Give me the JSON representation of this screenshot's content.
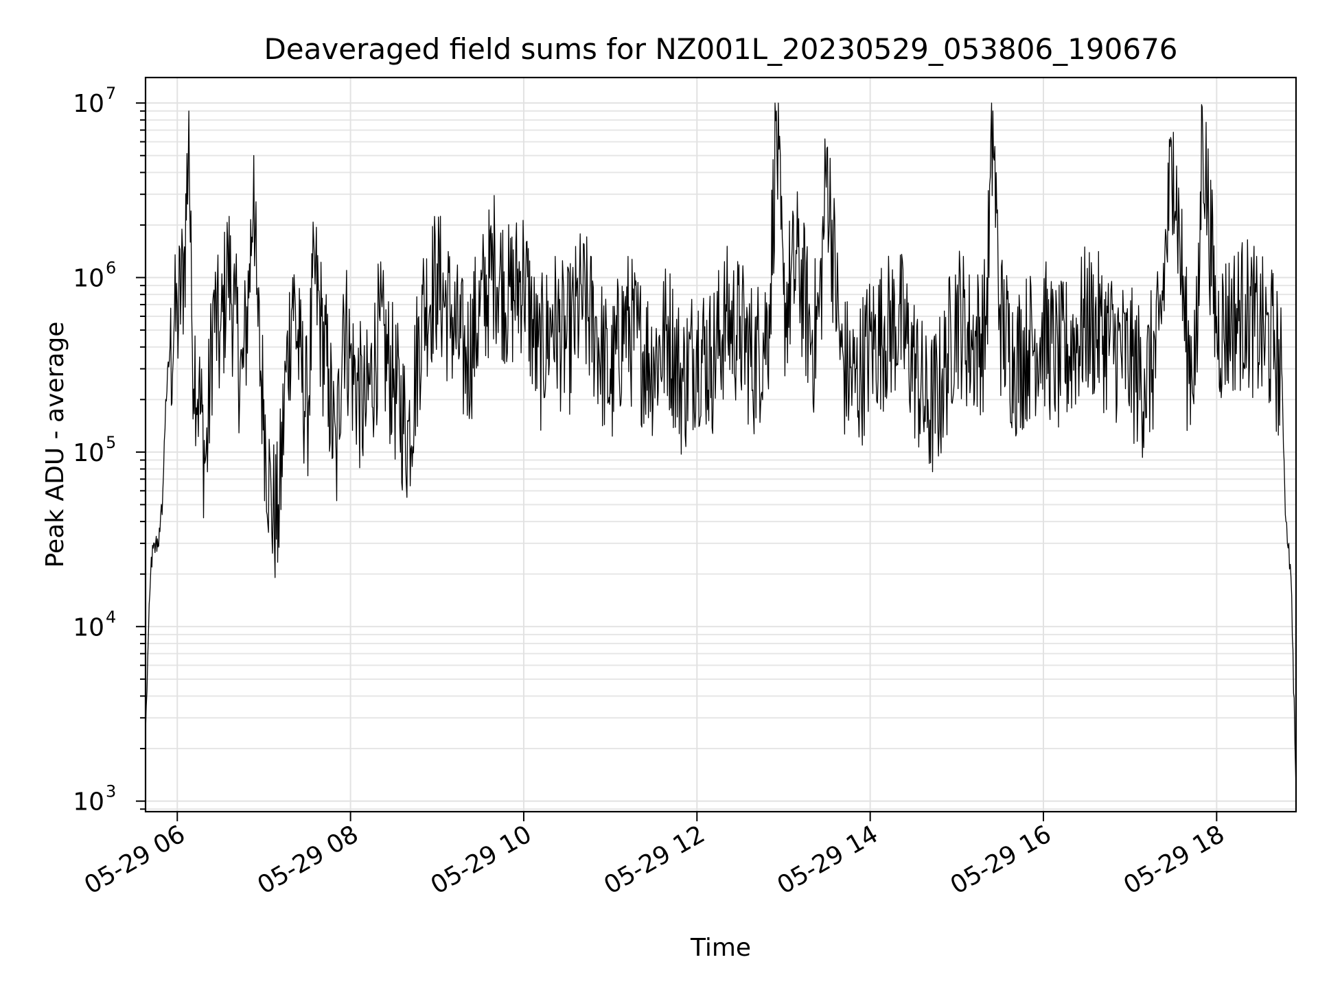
{
  "chart_data": {
    "type": "line",
    "title": "Deaveraged field sums for NZ001L_20230529_053806_190676",
    "xlabel": "Time",
    "ylabel": "Peak ADU - average",
    "yscale": "log",
    "ylim": [
      870,
      14000000
    ],
    "xlim": [
      "2023-05-29 05:38",
      "2023-05-29 18:55"
    ],
    "grid": true,
    "x_ticks": [
      {
        "value": "2023-05-29 06:00",
        "label": "05-29 06"
      },
      {
        "value": "2023-05-29 08:00",
        "label": "05-29 08"
      },
      {
        "value": "2023-05-29 10:00",
        "label": "05-29 10"
      },
      {
        "value": "2023-05-29 12:00",
        "label": "05-29 12"
      },
      {
        "value": "2023-05-29 14:00",
        "label": "05-29 14"
      },
      {
        "value": "2023-05-29 16:00",
        "label": "05-29 16"
      },
      {
        "value": "2023-05-29 18:00",
        "label": "05-29 18"
      }
    ],
    "y_ticks": [
      {
        "value": 1000,
        "base": "10",
        "exp": "3"
      },
      {
        "value": 10000,
        "base": "10",
        "exp": "4"
      },
      {
        "value": 100000,
        "base": "10",
        "exp": "5"
      },
      {
        "value": 1000000,
        "base": "10",
        "exp": "6"
      },
      {
        "value": 10000000,
        "base": "10",
        "exp": "7"
      }
    ],
    "series": [
      {
        "color": "#000000",
        "x": [
          "2023-05-29 05:38",
          "2023-05-29 05:40",
          "2023-05-29 05:42",
          "2023-05-29 05:45",
          "2023-05-29 05:48",
          "2023-05-29 05:50",
          "2023-05-29 05:52",
          "2023-05-29 05:55",
          "2023-05-29 05:58",
          "2023-05-29 06:00",
          "2023-05-29 06:05",
          "2023-05-29 06:08",
          "2023-05-29 06:10",
          "2023-05-29 06:15",
          "2023-05-29 06:20",
          "2023-05-29 06:25",
          "2023-05-29 06:30",
          "2023-05-29 06:35",
          "2023-05-29 06:40",
          "2023-05-29 06:45",
          "2023-05-29 06:50",
          "2023-05-29 06:53",
          "2023-05-29 06:55",
          "2023-05-29 07:00",
          "2023-05-29 07:05",
          "2023-05-29 07:10",
          "2023-05-29 07:15",
          "2023-05-29 07:20",
          "2023-05-29 07:25",
          "2023-05-29 07:30",
          "2023-05-29 07:35",
          "2023-05-29 07:40",
          "2023-05-29 07:45",
          "2023-05-29 07:50",
          "2023-05-29 07:55",
          "2023-05-29 08:00",
          "2023-05-29 08:10",
          "2023-05-29 08:20",
          "2023-05-29 08:30",
          "2023-05-29 08:40",
          "2023-05-29 08:50",
          "2023-05-29 09:00",
          "2023-05-29 09:10",
          "2023-05-29 09:20",
          "2023-05-29 09:30",
          "2023-05-29 09:40",
          "2023-05-29 09:50",
          "2023-05-29 10:00",
          "2023-05-29 10:10",
          "2023-05-29 10:20",
          "2023-05-29 10:30",
          "2023-05-29 10:40",
          "2023-05-29 10:50",
          "2023-05-29 11:00",
          "2023-05-29 11:10",
          "2023-05-29 11:20",
          "2023-05-29 11:30",
          "2023-05-29 11:40",
          "2023-05-29 11:50",
          "2023-05-29 12:00",
          "2023-05-29 12:10",
          "2023-05-29 12:20",
          "2023-05-29 12:30",
          "2023-05-29 12:40",
          "2023-05-29 12:50",
          "2023-05-29 12:55",
          "2023-05-29 13:00",
          "2023-05-29 13:10",
          "2023-05-29 13:20",
          "2023-05-29 13:25",
          "2023-05-29 13:30",
          "2023-05-29 13:40",
          "2023-05-29 13:50",
          "2023-05-29 14:00",
          "2023-05-29 14:10",
          "2023-05-29 14:20",
          "2023-05-29 14:30",
          "2023-05-29 14:40",
          "2023-05-29 14:50",
          "2023-05-29 15:00",
          "2023-05-29 15:10",
          "2023-05-29 15:20",
          "2023-05-29 15:25",
          "2023-05-29 15:30",
          "2023-05-29 15:40",
          "2023-05-29 15:50",
          "2023-05-29 16:00",
          "2023-05-29 16:10",
          "2023-05-29 16:20",
          "2023-05-29 16:30",
          "2023-05-29 16:40",
          "2023-05-29 16:50",
          "2023-05-29 17:00",
          "2023-05-29 17:10",
          "2023-05-29 17:20",
          "2023-05-29 17:30",
          "2023-05-29 17:40",
          "2023-05-29 17:47",
          "2023-05-29 17:50",
          "2023-05-29 18:00",
          "2023-05-29 18:10",
          "2023-05-29 18:20",
          "2023-05-29 18:30",
          "2023-05-29 18:40",
          "2023-05-29 18:45",
          "2023-05-29 18:48",
          "2023-05-29 18:50",
          "2023-05-29 18:52",
          "2023-05-29 18:55"
        ],
        "y": [
          2500,
          9000,
          25000,
          30000,
          35000,
          60000,
          200000,
          400000,
          600000,
          700000,
          1500000,
          9000000,
          600000,
          250000,
          100000,
          800000,
          500000,
          1500000,
          700000,
          300000,
          1200000,
          5000000,
          800000,
          200000,
          60000,
          50000,
          300000,
          1000000,
          400000,
          200000,
          1300000,
          600000,
          300000,
          100000,
          800000,
          400000,
          200000,
          600000,
          300000,
          150000,
          800000,
          1200000,
          700000,
          400000,
          800000,
          1500000,
          900000,
          1300000,
          400000,
          700000,
          500000,
          900000,
          600000,
          300000,
          700000,
          500000,
          400000,
          600000,
          300000,
          500000,
          400000,
          700000,
          600000,
          400000,
          700000,
          9000000,
          800000,
          1500000,
          500000,
          800000,
          5500000,
          400000,
          300000,
          500000,
          600000,
          700000,
          400000,
          200000,
          300000,
          800000,
          500000,
          600000,
          9000000,
          700000,
          400000,
          500000,
          600000,
          400000,
          500000,
          700000,
          600000,
          500000,
          400000,
          300000,
          500000,
          6800000,
          400000,
          500000,
          9500000,
          600000,
          700000,
          800000,
          600000,
          500000,
          300000,
          40000,
          30000,
          15000,
          1200
        ]
      }
    ],
    "notes": ""
  }
}
